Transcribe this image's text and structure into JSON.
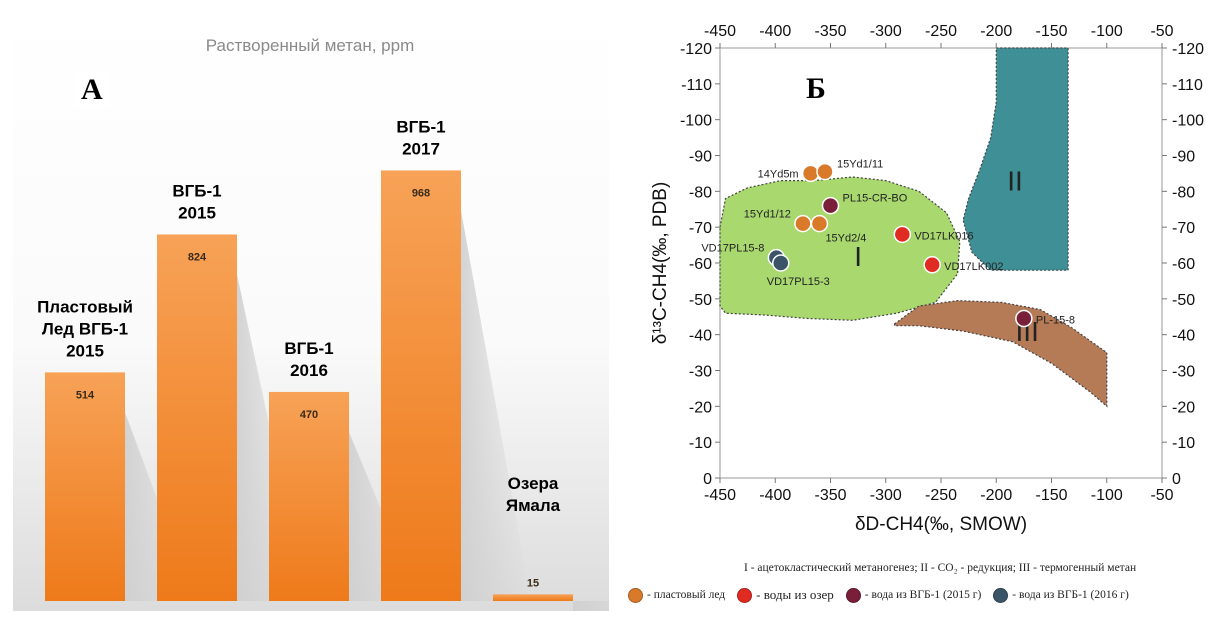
{
  "panel_a": {
    "letter": "А"
  },
  "panel_b": {
    "letter": "Б",
    "legend_note": "I - ацетокластический метаногенез; II - CO₂ - редукция; III - термогенный метан",
    "legend": [
      {
        "label": "- пластовый лед",
        "color": "#d97a2b"
      },
      {
        "label": "- воды из озер",
        "color": "#e02b22"
      },
      {
        "label": "- вода из ВГБ-1 (2015 г)",
        "color": "#7a1f3a"
      },
      {
        "label": "- вода из ВГБ-1 (2016 г)",
        "color": "#3a5568"
      }
    ]
  },
  "chart_data": [
    {
      "type": "bar",
      "title": "Растворенный метан, ppm",
      "categories": [
        [
          "Пластовый",
          "Лед ВГБ-1",
          "2015"
        ],
        [
          "ВГБ-1",
          "2015"
        ],
        [
          "ВГБ-1",
          "2016"
        ],
        [
          "ВГБ-1",
          "2017"
        ],
        [
          "Озера",
          "Ямала"
        ]
      ],
      "values": [
        514,
        824,
        470,
        968,
        15
      ],
      "ylim": [
        0,
        1250
      ],
      "bar_color": "#f08a2c",
      "grid": false,
      "legend": "none"
    },
    {
      "type": "scatter",
      "xlabel": "δD-CH4(‰, SMOW)",
      "ylabel": "δ¹³C-CH4(‰, PDB)",
      "xlim": [
        -450,
        -50
      ],
      "ylim": [
        0,
        -120
      ],
      "x_ticks": [
        -450,
        -400,
        -350,
        -300,
        -250,
        -200,
        -150,
        -100,
        -50
      ],
      "y_ticks": [
        0,
        -10,
        -20,
        -30,
        -40,
        -50,
        -60,
        -70,
        -80,
        -90,
        -100,
        -110,
        -120
      ],
      "grid": false,
      "regions": [
        {
          "name": "I",
          "color": "#a8d86e",
          "label_at": [
            -325,
            -62
          ],
          "polygon": [
            [
              -450,
              -70
            ],
            [
              -445,
              -78
            ],
            [
              -425,
              -81
            ],
            [
              -395,
              -83
            ],
            [
              -365,
              -83
            ],
            [
              -330,
              -84
            ],
            [
              -300,
              -83
            ],
            [
              -270,
              -80
            ],
            [
              -245,
              -74
            ],
            [
              -233,
              -66
            ],
            [
              -235,
              -57
            ],
            [
              -255,
              -49
            ],
            [
              -290,
              -46
            ],
            [
              -330,
              -44
            ],
            [
              -370,
              -44.5
            ],
            [
              -410,
              -45.5
            ],
            [
              -445,
              -46
            ],
            [
              -450,
              -48
            ]
          ]
        },
        {
          "name": "II",
          "color": "#3e8f96",
          "label_at": [
            -183,
            -83
          ],
          "polygon": [
            [
              -200,
              -120
            ],
            [
              -135,
              -120
            ],
            [
              -135,
              -58
            ],
            [
              -205,
              -58
            ],
            [
              -222,
              -63
            ],
            [
              -230,
              -72
            ],
            [
              -225,
              -78
            ],
            [
              -215,
              -86
            ],
            [
              -205,
              -95
            ],
            [
              -200,
              -105
            ]
          ]
        },
        {
          "name": "III",
          "color": "#b57a56",
          "label_at": [
            -172,
            -41
          ],
          "polygon": [
            [
              -292,
              -43
            ],
            [
              -270,
              -48
            ],
            [
              -235,
              -49.5
            ],
            [
              -195,
              -49
            ],
            [
              -160,
              -47
            ],
            [
              -132,
              -42
            ],
            [
              -100,
              -35
            ],
            [
              -100,
              -20
            ],
            [
              -115,
              -24
            ],
            [
              -150,
              -32
            ],
            [
              -185,
              -38
            ],
            [
              -230,
              -41
            ],
            [
              -270,
              -42.5
            ],
            [
              -292,
              -42.5
            ]
          ]
        }
      ],
      "points": [
        {
          "label": "14Yd5m",
          "x": -368,
          "y": -85,
          "group": "пластовый лед",
          "color": "#d97a2b",
          "label_pos": "left"
        },
        {
          "label": "15Yd1/11",
          "x": -355,
          "y": -85.5,
          "group": "пластовый лед",
          "color": "#d97a2b",
          "label_pos": "right-up"
        },
        {
          "label": "15Yd1/12",
          "x": -375,
          "y": -71,
          "group": "пластовый лед",
          "color": "#d97a2b",
          "label_pos": "left-up"
        },
        {
          "label": "15Yd2/4",
          "x": -360,
          "y": -71,
          "group": "пластовый лед",
          "color": "#d97a2b",
          "label_pos": "right-down"
        },
        {
          "label": "PL15-CR-BO",
          "x": -350,
          "y": -76,
          "group": "вода из ВГБ-1 (2015 г)",
          "color": "#7a1f3a",
          "label_pos": "right-up"
        },
        {
          "label": "VD17LK016",
          "x": -285,
          "y": -68,
          "group": "воды из озер",
          "color": "#e02b22",
          "label_pos": "right"
        },
        {
          "label": "VD17LK002",
          "x": -258,
          "y": -59.5,
          "group": "воды из озер",
          "color": "#e02b22",
          "label_pos": "right"
        },
        {
          "label": "VD17PL15-8",
          "x": -399,
          "y": -61.5,
          "group": "вода из ВГБ-1 (2016 г)",
          "color": "#3a5568",
          "label_pos": "left-up"
        },
        {
          "label": "VD17PL15-3",
          "x": -395,
          "y": -60,
          "group": "вода из ВГБ-1 (2016 г)",
          "color": "#3a5568",
          "label_pos": "below"
        },
        {
          "label": "PL-15-8",
          "x": -175,
          "y": -44.5,
          "group": "вода из ВГБ-1 (2015 г)",
          "color": "#7a1f3a",
          "label_pos": "right"
        }
      ]
    }
  ]
}
